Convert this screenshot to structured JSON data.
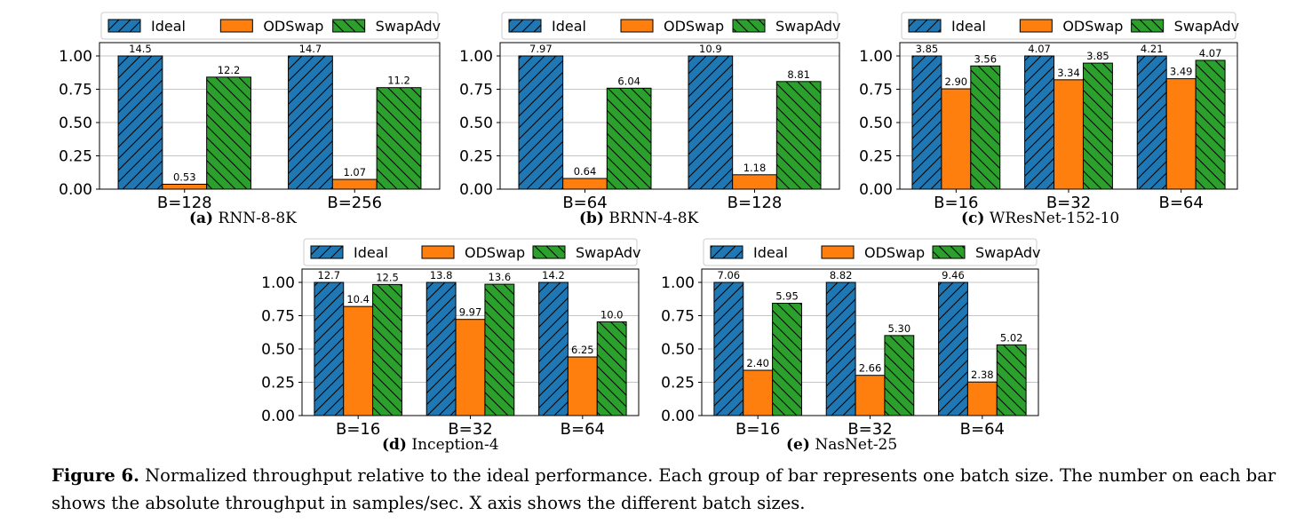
{
  "colors": {
    "ideal": "#1f77b4",
    "odswap": "#ff7f0e",
    "swapadv": "#2ca02c"
  },
  "chart_data": [
    {
      "type": "bar",
      "id": "a",
      "subcaption_letter": "(a)",
      "subcaption_text": "RNN-8-8K",
      "categories": [
        "B=128",
        "B=256"
      ],
      "series": [
        {
          "name": "Ideal",
          "values": [
            1.0,
            1.0
          ],
          "labels": [
            "14.5",
            "14.7"
          ]
        },
        {
          "name": "ODSwap",
          "values": [
            0.037,
            0.073
          ],
          "labels": [
            "0.53",
            "1.07"
          ]
        },
        {
          "name": "SwapAdv",
          "values": [
            0.841,
            0.762
          ],
          "labels": [
            "12.2",
            "11.2"
          ]
        }
      ],
      "ylim": [
        0,
        1.1
      ],
      "yticks": [
        "0.00",
        "0.25",
        "0.50",
        "0.75",
        "1.00"
      ],
      "grid": true,
      "legend": "top"
    },
    {
      "type": "bar",
      "id": "b",
      "subcaption_letter": "(b)",
      "subcaption_text": "BRNN-4-8K",
      "categories": [
        "B=64",
        "B=128"
      ],
      "series": [
        {
          "name": "Ideal",
          "values": [
            1.0,
            1.0
          ],
          "labels": [
            "7.97",
            "10.9"
          ]
        },
        {
          "name": "ODSwap",
          "values": [
            0.08,
            0.108
          ],
          "labels": [
            "0.64",
            "1.18"
          ]
        },
        {
          "name": "SwapAdv",
          "values": [
            0.758,
            0.808
          ],
          "labels": [
            "6.04",
            "8.81"
          ]
        }
      ],
      "ylim": [
        0,
        1.1
      ],
      "yticks": [
        "0.00",
        "0.25",
        "0.50",
        "0.75",
        "1.00"
      ],
      "grid": true,
      "legend": "top"
    },
    {
      "type": "bar",
      "id": "c",
      "subcaption_letter": "(c)",
      "subcaption_text": "WResNet-152-10",
      "categories": [
        "B=16",
        "B=32",
        "B=64"
      ],
      "series": [
        {
          "name": "Ideal",
          "values": [
            1.0,
            1.0,
            1.0
          ],
          "labels": [
            "3.85",
            "4.07",
            "4.21"
          ]
        },
        {
          "name": "ODSwap",
          "values": [
            0.753,
            0.821,
            0.829
          ],
          "labels": [
            "2.90",
            "3.34",
            "3.49"
          ]
        },
        {
          "name": "SwapAdv",
          "values": [
            0.925,
            0.946,
            0.967
          ],
          "labels": [
            "3.56",
            "3.85",
            "4.07"
          ]
        }
      ],
      "ylim": [
        0,
        1.1
      ],
      "yticks": [
        "0.00",
        "0.25",
        "0.50",
        "0.75",
        "1.00"
      ],
      "grid": true,
      "legend": "top"
    },
    {
      "type": "bar",
      "id": "d",
      "subcaption_letter": "(d)",
      "subcaption_text": "Inception-4",
      "categories": [
        "B=16",
        "B=32",
        "B=64"
      ],
      "series": [
        {
          "name": "Ideal",
          "values": [
            1.0,
            1.0,
            1.0
          ],
          "labels": [
            "12.7",
            "13.8",
            "14.2"
          ]
        },
        {
          "name": "ODSwap",
          "values": [
            0.819,
            0.722,
            0.44
          ],
          "labels": [
            "10.4",
            "9.97",
            "6.25"
          ]
        },
        {
          "name": "SwapAdv",
          "values": [
            0.984,
            0.986,
            0.704
          ],
          "labels": [
            "12.5",
            "13.6",
            "10.0"
          ]
        }
      ],
      "ylim": [
        0,
        1.1
      ],
      "yticks": [
        "0.00",
        "0.25",
        "0.50",
        "0.75",
        "1.00"
      ],
      "grid": true,
      "legend": "top"
    },
    {
      "type": "bar",
      "id": "e",
      "subcaption_letter": "(e)",
      "subcaption_text": "NasNet-25",
      "categories": [
        "B=16",
        "B=32",
        "B=64"
      ],
      "series": [
        {
          "name": "Ideal",
          "values": [
            1.0,
            1.0,
            1.0
          ],
          "labels": [
            "7.06",
            "8.82",
            "9.46"
          ]
        },
        {
          "name": "ODSwap",
          "values": [
            0.34,
            0.302,
            0.252
          ],
          "labels": [
            "2.40",
            "2.66",
            "2.38"
          ]
        },
        {
          "name": "SwapAdv",
          "values": [
            0.843,
            0.601,
            0.531
          ],
          "labels": [
            "5.95",
            "5.30",
            "5.02"
          ]
        }
      ],
      "ylim": [
        0,
        1.1
      ],
      "yticks": [
        "0.00",
        "0.25",
        "0.50",
        "0.75",
        "1.00"
      ],
      "grid": true,
      "legend": "top"
    }
  ],
  "caption": {
    "label": "Figure 6.",
    "text": " Normalized throughput relative to the ideal performance. Each group of bar represents one batch size. The number on each bar shows the absolute throughput in samples/sec. X axis shows the different batch sizes."
  }
}
